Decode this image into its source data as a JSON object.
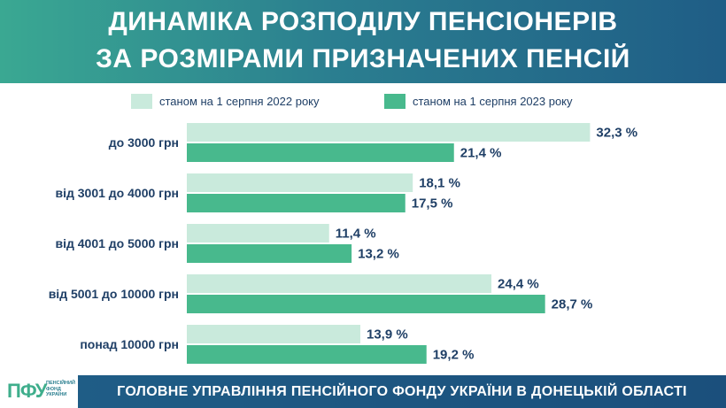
{
  "header": {
    "title_line1": "ДИНАМІКА РОЗПОДІЛУ ПЕНСІОНЕРІВ",
    "title_line2": "ЗА РОЗМІРАМИ ПРИЗНАЧЕНИХ ПЕНСІЙ"
  },
  "colors": {
    "series_2022": "#c9eadc",
    "series_2023": "#48b98d",
    "label_text": "#1f3f66"
  },
  "chart_data": {
    "type": "bar",
    "orientation": "horizontal",
    "title": "ДИНАМІКА РОЗПОДІЛУ ПЕНСІОНЕРІВ ЗА РОЗМІРАМИ ПРИЗНАЧЕНИХ ПЕНСІЙ",
    "categories": [
      "до 3000 грн",
      "від 3001 до 4000 грн",
      "від 4001 до 5000 грн",
      "від 5001 до 10000 грн",
      "понад 10000 грн"
    ],
    "series": [
      {
        "name": "станом на 1 серпня 2022 року",
        "values": [
          32.3,
          18.1,
          11.4,
          24.4,
          13.9
        ],
        "labels": [
          "32,3 %",
          "18,1 %",
          "11,4 %",
          "24,4 %",
          "13,9 %"
        ]
      },
      {
        "name": "станом на 1 серпня 2023 року",
        "values": [
          21.4,
          17.5,
          13.2,
          28.7,
          19.2
        ],
        "labels": [
          "21,4 %",
          "17,5 %",
          "13,2 %",
          "28,7 %",
          "19,2 %"
        ]
      }
    ],
    "xlim": [
      0,
      35
    ],
    "grid": false,
    "legend": "top"
  },
  "footer": {
    "text": "ГОЛОВНЕ УПРАВЛІННЯ ПЕНСІЙНОГО ФОНДУ УКРАЇНИ В ДОНЕЦЬКІЙ ОБЛАСТІ",
    "logo_mark": "ПФУ",
    "logo_text": "ПЕНСІЙНИЙ ФОНД УКРАЇНИ"
  }
}
